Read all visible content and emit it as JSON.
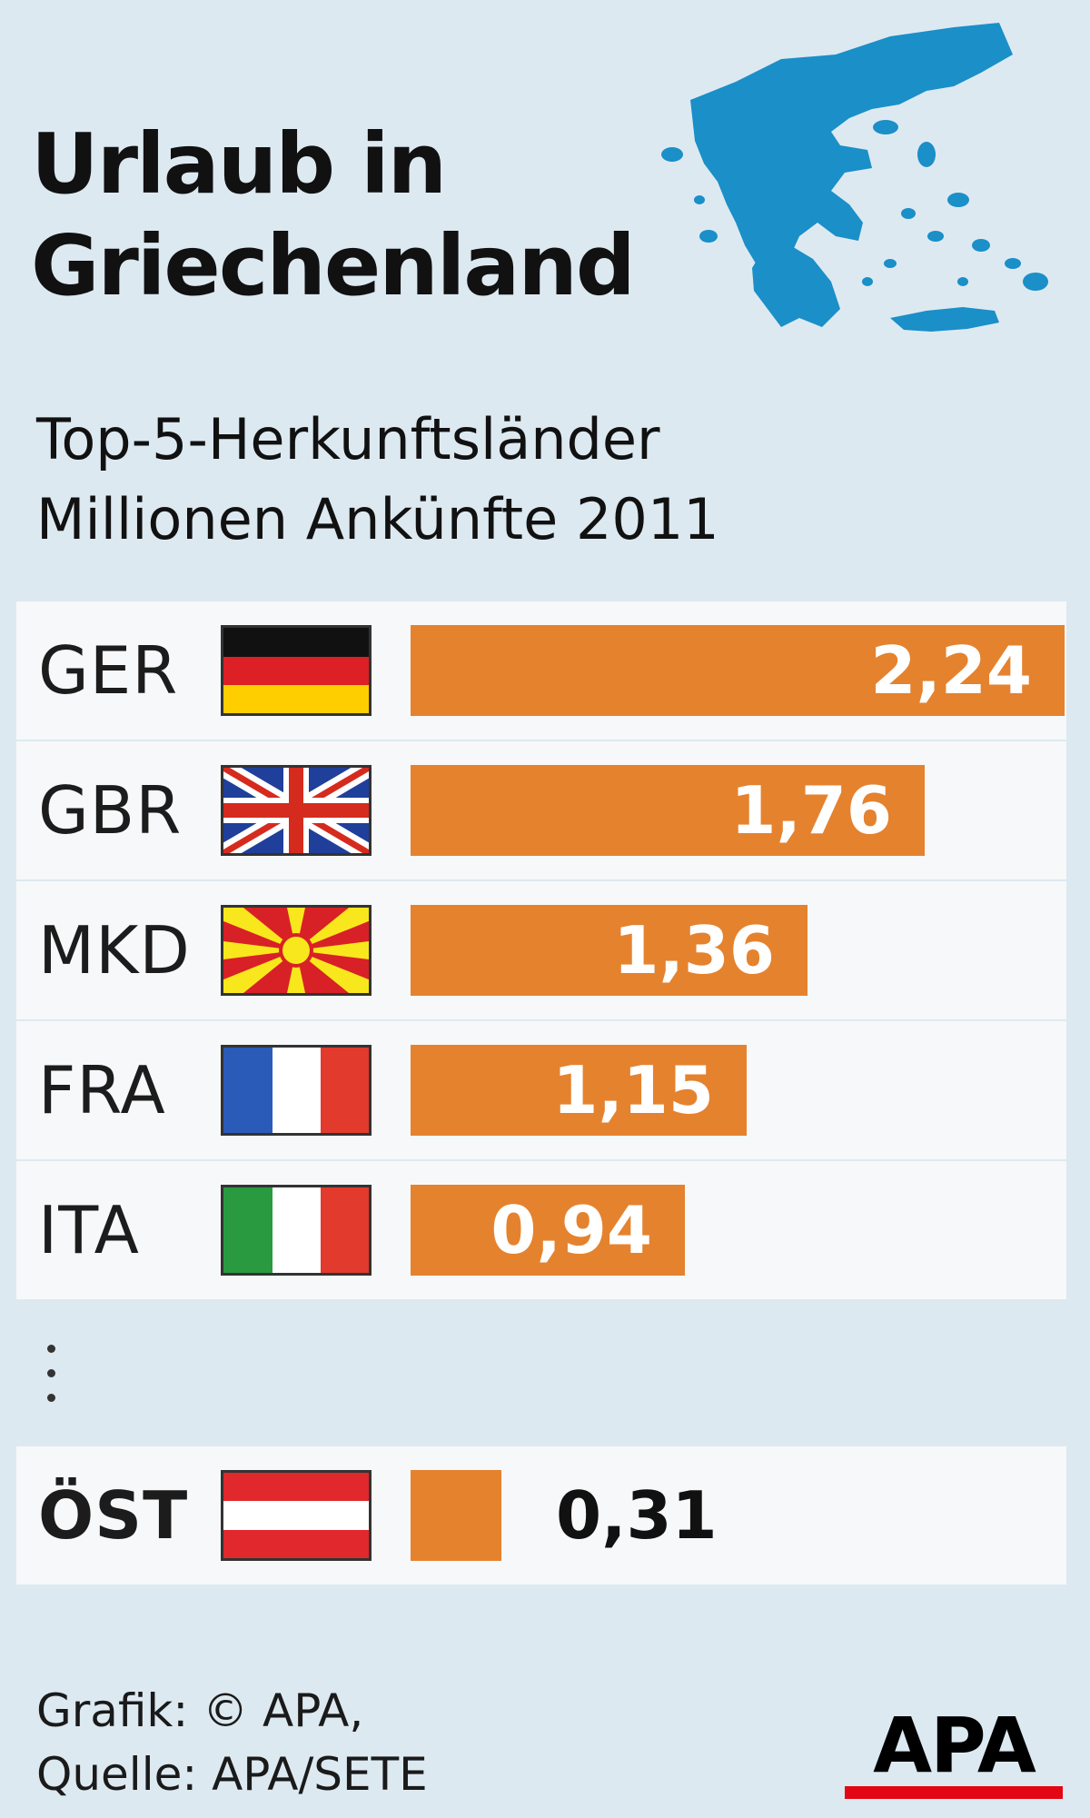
{
  "header": {
    "title_line1": "Urlaub in",
    "title_line2": "Griechenland",
    "subtitle_line1": "Top-5-Herkunftsländer",
    "subtitle_line2": "Millionen Ankünfte 2011"
  },
  "colors": {
    "bar": "#e5822e",
    "background": "#dde9f1",
    "map": "#1a8fc8"
  },
  "chart_data": {
    "type": "bar",
    "orientation": "horizontal",
    "title": "Urlaub in Griechenland",
    "subtitle": "Top-5-Herkunftsländer Millionen Ankünfte 2011",
    "categories": [
      "GER",
      "GBR",
      "MKD",
      "FRA",
      "ITA",
      "ÖST"
    ],
    "values": [
      2.24,
      1.76,
      1.36,
      1.15,
      0.94,
      0.31
    ],
    "value_labels": [
      "2,24",
      "1,76",
      "1,36",
      "1,15",
      "0,94",
      "0,31"
    ],
    "flags": [
      "flag-germany-icon",
      "flag-uk-icon",
      "flag-macedonia-icon",
      "flag-france-icon",
      "flag-italy-icon",
      "flag-austria-icon"
    ],
    "xlim": [
      0,
      2.24
    ],
    "grid": false,
    "legend": "none"
  },
  "footer": {
    "credit_line1": "Grafik: © APA,",
    "credit_line2": "Quelle: APA/SETE",
    "logo_text": "APA"
  }
}
